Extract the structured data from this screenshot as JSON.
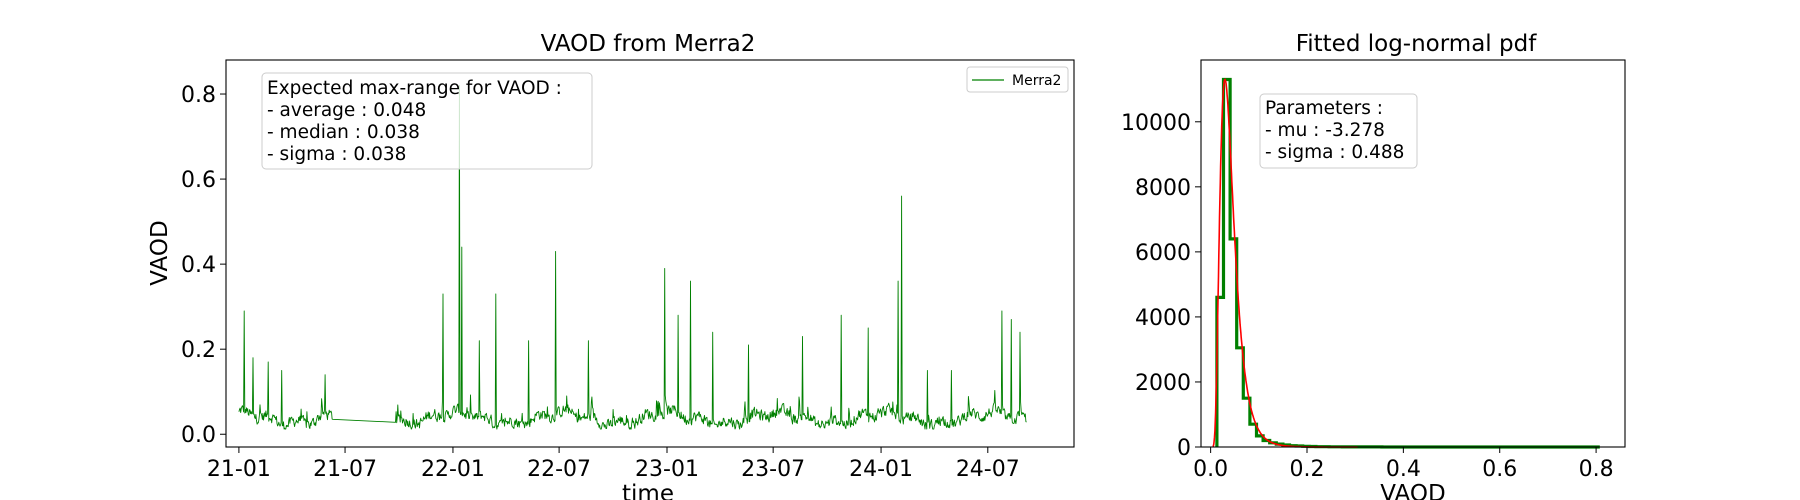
{
  "charts": [
    {
      "title": "VAOD from Merra2",
      "xlabel": "time",
      "ylabel": "VAOD",
      "legend_label": "Merra2",
      "color": "#008000",
      "info_lines": [
        "Expected max-range for VAOD :",
        "- average : 0.048",
        "- median : 0.038",
        "- sigma : 0.038"
      ]
    },
    {
      "title": "Fitted log-normal pdf",
      "xlabel": "VAOD",
      "ylabel": "",
      "hist_color": "#008000",
      "fit_color": "#ff0000",
      "info_lines": [
        "Parameters :",
        "- mu : -3.278",
        "- sigma : 0.488"
      ]
    }
  ],
  "chart_data": [
    {
      "type": "line",
      "title": "VAOD from Merra2",
      "xlabel": "time",
      "ylabel": "VAOD",
      "x_ticks": [
        "21-01",
        "21-07",
        "22-01",
        "22-07",
        "23-01",
        "23-07",
        "24-01",
        "24-07"
      ],
      "y_ticks": [
        "0.0",
        "0.2",
        "0.4",
        "0.6",
        "0.8"
      ],
      "xlim": [
        "2020-12-10",
        "2024-11-25"
      ],
      "ylim": [
        -0.03,
        0.88
      ],
      "legend": "top-right",
      "series": [
        {
          "name": "Merra2",
          "color": "#008000",
          "gaps": [
            [
              "2021-06-10",
              "2021-09-25"
            ]
          ],
          "baseline_range": [
            0.02,
            0.07
          ],
          "peaks": [
            {
              "x": "2021-01-10",
              "y": 0.29
            },
            {
              "x": "2021-01-25",
              "y": 0.18
            },
            {
              "x": "2021-02-20",
              "y": 0.17
            },
            {
              "x": "2021-03-15",
              "y": 0.15
            },
            {
              "x": "2021-05-28",
              "y": 0.14
            },
            {
              "x": "2021-12-15",
              "y": 0.33
            },
            {
              "x": "2022-01-12",
              "y": 0.82
            },
            {
              "x": "2022-01-16",
              "y": 0.44
            },
            {
              "x": "2022-02-15",
              "y": 0.22
            },
            {
              "x": "2022-03-15",
              "y": 0.33
            },
            {
              "x": "2022-05-10",
              "y": 0.22
            },
            {
              "x": "2022-06-25",
              "y": 0.43
            },
            {
              "x": "2022-08-20",
              "y": 0.22
            },
            {
              "x": "2022-12-28",
              "y": 0.39
            },
            {
              "x": "2023-01-20",
              "y": 0.28
            },
            {
              "x": "2023-02-10",
              "y": 0.36
            },
            {
              "x": "2023-03-20",
              "y": 0.24
            },
            {
              "x": "2023-05-20",
              "y": 0.21
            },
            {
              "x": "2023-08-20",
              "y": 0.23
            },
            {
              "x": "2023-10-25",
              "y": 0.28
            },
            {
              "x": "2023-12-10",
              "y": 0.25
            },
            {
              "x": "2024-02-05",
              "y": 0.56
            },
            {
              "x": "2024-01-30",
              "y": 0.36
            },
            {
              "x": "2024-03-20",
              "y": 0.15
            },
            {
              "x": "2024-04-30",
              "y": 0.15
            },
            {
              "x": "2024-07-25",
              "y": 0.29
            },
            {
              "x": "2024-08-10",
              "y": 0.27
            },
            {
              "x": "2024-08-25",
              "y": 0.24
            }
          ]
        }
      ]
    },
    {
      "type": "histogram",
      "title": "Fitted log-normal pdf",
      "xlabel": "VAOD",
      "x_ticks": [
        "0.0",
        "0.2",
        "0.4",
        "0.6",
        "0.8"
      ],
      "y_ticks": [
        "0",
        "2000",
        "4000",
        "6000",
        "8000",
        "10000"
      ],
      "xlim": [
        -0.02,
        0.86
      ],
      "ylim": [
        0,
        11900
      ],
      "bin_width": 0.0137,
      "bin_start": 0.013,
      "counts": [
        4600,
        11300,
        6400,
        3050,
        1500,
        700,
        340,
        200,
        130,
        90,
        60,
        40,
        30,
        20,
        15,
        10,
        8,
        6,
        5,
        4,
        3,
        3,
        2,
        2,
        2,
        1,
        1,
        1,
        1,
        1,
        1,
        1,
        1,
        1,
        1,
        1,
        1,
        1,
        1,
        1,
        1,
        1,
        1,
        1,
        1,
        1,
        1,
        1,
        1,
        1,
        1,
        1,
        1,
        1,
        1,
        1,
        1,
        1
      ],
      "fit": {
        "type": "lognormal",
        "mu": -3.278,
        "sigma": 0.488,
        "peak_height": 11300
      }
    }
  ]
}
